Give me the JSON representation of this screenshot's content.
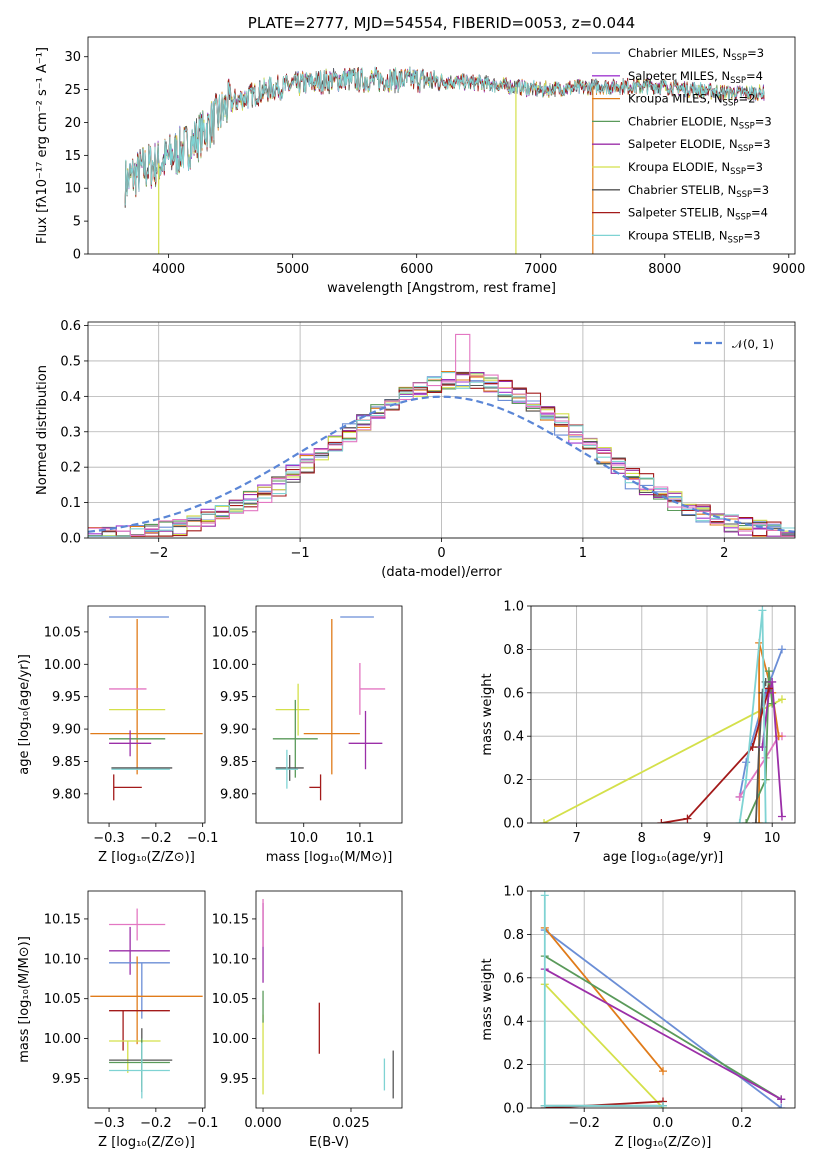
{
  "chart_data": [
    {
      "type": "line",
      "title": "PLATE=2777, MJD=54554, FIBERID=0053, z=0.044",
      "xlabel": "wavelength [Angstrom, rest frame]",
      "ylabel": "Flux [fλ10⁻¹⁷ erg cm⁻² s⁻¹ A⁻¹]",
      "xlim": [
        3350,
        9050
      ],
      "ylim": [
        0,
        33
      ],
      "xticks": [
        4000,
        5000,
        6000,
        7000,
        8000,
        9000
      ],
      "yticks": [
        0,
        5,
        10,
        15,
        20,
        25,
        30
      ],
      "legend_position": "top-right",
      "series": [
        {
          "name": "Chabrier MILES, N_SSP=3",
          "color": "#6b8ed6"
        },
        {
          "name": "Salpeter MILES, N_SSP=4",
          "color": "#a13ad0"
        },
        {
          "name": "Kroupa MILES, N_SSP=2",
          "color": "#e07b1a"
        },
        {
          "name": "Chabrier ELODIE, N_SSP=3",
          "color": "#5a9a5a"
        },
        {
          "name": "Salpeter ELODIE, N_SSP=3",
          "color": "#9b2fa8"
        },
        {
          "name": "Kroupa ELODIE, N_SSP=3",
          "color": "#d4e04a"
        },
        {
          "name": "Chabrier STELIB, N_SSP=3",
          "color": "#555555"
        },
        {
          "name": "Salpeter STELIB, N_SSP=4",
          "color": "#a31a1a"
        },
        {
          "name": "Kroupa STELIB, N_SSP=3",
          "color": "#7fd3d3"
        }
      ],
      "continuum": {
        "x": [
          3650,
          3800,
          3950,
          4200,
          4500,
          4800,
          5100,
          5400,
          5700,
          6000,
          6500,
          7000,
          7500,
          8000,
          8500,
          8800
        ],
        "y": [
          11,
          13,
          14,
          17,
          23,
          25,
          26,
          26.5,
          26.5,
          26.5,
          26,
          25,
          25.5,
          25.5,
          24.5,
          24.5
        ]
      },
      "dropouts": [
        {
          "x": 3920,
          "color": "#d4e04a"
        },
        {
          "x": 6800,
          "color": "#d4e04a"
        },
        {
          "x": 7420,
          "color": "#e07b1a"
        }
      ]
    },
    {
      "type": "histogram",
      "xlabel": "(data-model)/error",
      "ylabel": "Normed distribution",
      "xlim": [
        -2.5,
        2.5
      ],
      "ylim": [
        0,
        0.61
      ],
      "xticks": [
        -2,
        -1,
        0,
        1,
        2
      ],
      "yticks": [
        0.0,
        0.1,
        0.2,
        0.3,
        0.4,
        0.5,
        0.6
      ],
      "grid": true,
      "legend": "𝒩(0, 1)",
      "legend_position": "top-right",
      "gaussian": {
        "mu": 0,
        "sigma": 1,
        "color": "#5b86d6"
      },
      "bin_width": 0.1,
      "bin_start": -2.5,
      "series_colors": [
        "#6b8ed6",
        "#a13ad0",
        "#e07b1a",
        "#5a9a5a",
        "#9b2fa8",
        "#d4e04a",
        "#555555",
        "#a31a1a",
        "#7fd3d3",
        "#e377c2"
      ],
      "peak_value": 0.575
    },
    {
      "type": "scatter",
      "xlabel": "Z [log₁₀(Z/Z⊙)]",
      "ylabel": "age  [log₁₀(age/yr)]",
      "xlim": [
        -0.345,
        -0.095
      ],
      "ylim": [
        9.755,
        10.09
      ],
      "xticks": [
        -0.3,
        -0.2,
        -0.1
      ],
      "yticks": [
        9.8,
        9.85,
        9.9,
        9.95,
        10.0,
        10.05
      ],
      "points": [
        {
          "x": -0.23,
          "y": 10.073,
          "xerr": [
            0.07,
            0.058
          ],
          "yerr": [
            0,
            0
          ],
          "color": "#6b8ed6"
        },
        {
          "x": -0.24,
          "y": 9.97,
          "xerr": [
            0,
            0
          ],
          "yerr": [
            0.14,
            0.1
          ],
          "color": "#e07b1a"
        },
        {
          "x": -0.26,
          "y": 9.962,
          "xerr": [
            0.04,
            0.04
          ],
          "yerr": [
            0,
            0
          ],
          "color": "#e377c2"
        },
        {
          "x": -0.245,
          "y": 9.93,
          "xerr": [
            0.055,
            0.065
          ],
          "yerr": [
            0,
            0
          ],
          "color": "#d4e04a"
        },
        {
          "x": -0.24,
          "y": 9.893,
          "xerr": [
            0.1,
            0.14
          ],
          "yerr": [
            0,
            0
          ],
          "color": "#e07b1a"
        },
        {
          "x": -0.24,
          "y": 9.885,
          "xerr": [
            0.06,
            0.06
          ],
          "yerr": [
            0,
            0
          ],
          "color": "#5a9a5a"
        },
        {
          "x": -0.255,
          "y": 9.878,
          "xerr": [
            0.045,
            0.045
          ],
          "yerr": [
            0.02,
            0.02
          ],
          "color": "#9b2fa8"
        },
        {
          "x": -0.23,
          "y": 9.84,
          "xerr": [
            0.065,
            0.065
          ],
          "yerr": [
            0,
            0
          ],
          "color": "#555555"
        },
        {
          "x": -0.23,
          "y": 9.838,
          "xerr": [
            0.065,
            0.06
          ],
          "yerr": [
            0,
            0
          ],
          "color": "#7fd3d3"
        },
        {
          "x": -0.29,
          "y": 9.81,
          "xerr": [
            0,
            0.06
          ],
          "yerr": [
            0.02,
            0.02
          ],
          "color": "#a31a1a"
        }
      ]
    },
    {
      "type": "scatter",
      "xlabel": "mass [log₁₀(M/M⊙)]",
      "ylabel": "",
      "xlim": [
        9.915,
        10.175
      ],
      "ylim": [
        9.755,
        10.09
      ],
      "xticks": [
        10.0,
        10.1
      ],
      "yticks": [
        9.8,
        9.85,
        9.9,
        9.95,
        10.0,
        10.05
      ],
      "points": [
        {
          "x": 10.095,
          "y": 10.073,
          "xerr": [
            0.03,
            0.03
          ],
          "yerr": [
            0,
            0
          ],
          "color": "#6b8ed6"
        },
        {
          "x": 10.1,
          "y": 9.962,
          "xerr": [
            0,
            0.045
          ],
          "yerr": [
            0.04,
            0.04
          ],
          "color": "#e377c2"
        },
        {
          "x": 10.05,
          "y": 9.97,
          "xerr": [
            0,
            0
          ],
          "yerr": [
            0.14,
            0.1
          ],
          "color": "#e07b1a"
        },
        {
          "x": 10.05,
          "y": 9.893,
          "xerr": [
            0.05,
            0.05
          ],
          "yerr": [
            0,
            0
          ],
          "color": "#e07b1a"
        },
        {
          "x": 9.99,
          "y": 9.93,
          "xerr": [
            0.04,
            0.02
          ],
          "yerr": [
            0.04,
            0.04
          ],
          "color": "#d4e04a"
        },
        {
          "x": 9.985,
          "y": 9.885,
          "xerr": [
            0.04,
            0.04
          ],
          "yerr": [
            0.06,
            0.06
          ],
          "color": "#5a9a5a"
        },
        {
          "x": 10.11,
          "y": 9.878,
          "xerr": [
            0.03,
            0.03
          ],
          "yerr": [
            0.04,
            0.05
          ],
          "color": "#9b2fa8"
        },
        {
          "x": 9.975,
          "y": 9.84,
          "xerr": [
            0.025,
            0.025
          ],
          "yerr": [
            0.02,
            0.02
          ],
          "color": "#555555"
        },
        {
          "x": 9.97,
          "y": 9.838,
          "xerr": [
            0.02,
            0.02
          ],
          "yerr": [
            0.03,
            0.03
          ],
          "color": "#7fd3d3"
        },
        {
          "x": 10.03,
          "y": 9.81,
          "xerr": [
            0.02,
            0
          ],
          "yerr": [
            0.02,
            0.02
          ],
          "color": "#a31a1a"
        }
      ]
    },
    {
      "type": "line",
      "xlabel": "age  [log₁₀(age/yr)]",
      "ylabel": "mass weight",
      "xlim": [
        6.3,
        10.35
      ],
      "ylim": [
        0,
        1.0
      ],
      "xticks": [
        7,
        8,
        9,
        10
      ],
      "yticks": [
        0.0,
        0.2,
        0.4,
        0.6,
        0.8,
        1.0
      ],
      "grid": true,
      "series": [
        {
          "color": "#d4e04a",
          "x": [
            6.5,
            10.15
          ],
          "y": [
            0.0,
            0.57
          ]
        },
        {
          "color": "#6b8ed6",
          "x": [
            9.5,
            9.6,
            9.9,
            10.15
          ],
          "y": [
            0.12,
            0.28,
            0.6,
            0.8
          ]
        },
        {
          "color": "#e377c2",
          "x": [
            9.5,
            9.9,
            10.1,
            10.15
          ],
          "y": [
            0.12,
            0.3,
            0.4,
            0.4
          ]
        },
        {
          "color": "#e07b1a",
          "x": [
            9.8,
            9.8,
            10.0,
            10.1
          ],
          "y": [
            0.0,
            0.83,
            0.6,
            0.4
          ]
        },
        {
          "color": "#5a9a5a",
          "x": [
            9.6,
            9.9,
            9.95,
            10.0
          ],
          "y": [
            0.0,
            0.2,
            0.7,
            0.55
          ]
        },
        {
          "color": "#555555",
          "x": [
            9.75,
            9.8,
            9.85,
            9.9
          ],
          "y": [
            0.0,
            0.35,
            0.6,
            0.65
          ]
        },
        {
          "color": "#9b2fa8",
          "x": [
            9.85,
            9.95,
            10.0,
            10.15
          ],
          "y": [
            0.35,
            0.6,
            0.65,
            0.03
          ]
        },
        {
          "color": "#a31a1a",
          "x": [
            8.3,
            8.7,
            9.7,
            9.95
          ],
          "y": [
            0.0,
            0.02,
            0.35,
            0.62
          ]
        },
        {
          "color": "#7fd3d3",
          "x": [
            9.5,
            9.6,
            9.85,
            9.9
          ],
          "y": [
            0.0,
            0.2,
            0.98,
            0.0
          ]
        }
      ]
    },
    {
      "type": "scatter",
      "xlabel": "Z [log₁₀(Z/Z⊙)]",
      "ylabel": "mass [log₁₀(M/M⊙)]",
      "xlim": [
        -0.345,
        -0.095
      ],
      "ylim": [
        9.913,
        10.185
      ],
      "xticks": [
        -0.3,
        -0.2,
        -0.1
      ],
      "yticks": [
        9.95,
        10.0,
        10.05,
        10.1,
        10.15
      ],
      "points": [
        {
          "x": -0.24,
          "y": 10.143,
          "xerr": [
            0.06,
            0.06
          ],
          "yerr": [
            0.02,
            0.02
          ],
          "color": "#e377c2"
        },
        {
          "x": -0.255,
          "y": 10.11,
          "xerr": [
            0.045,
            0.085
          ],
          "yerr": [
            0.03,
            0.03
          ],
          "color": "#9b2fa8"
        },
        {
          "x": -0.23,
          "y": 10.095,
          "xerr": [
            0.07,
            0.06
          ],
          "yerr": [
            0.07,
            0
          ],
          "color": "#6b8ed6"
        },
        {
          "x": -0.24,
          "y": 10.053,
          "xerr": [
            0.1,
            0.14
          ],
          "yerr": [
            0.06,
            0.05
          ],
          "color": "#e07b1a"
        },
        {
          "x": -0.27,
          "y": 10.035,
          "xerr": [
            0.03,
            0.1
          ],
          "yerr": [
            0.05,
            0
          ],
          "color": "#a31a1a"
        },
        {
          "x": -0.26,
          "y": 9.997,
          "xerr": [
            0.04,
            0.07
          ],
          "yerr": [
            0.04,
            0
          ],
          "color": "#d4e04a"
        },
        {
          "x": -0.23,
          "y": 9.973,
          "xerr": [
            0.07,
            0.065
          ],
          "yerr": [
            0.04,
            0.04
          ],
          "color": "#555555"
        },
        {
          "x": -0.23,
          "y": 9.97,
          "xerr": [
            0.07,
            0.06
          ],
          "yerr": [
            0.03,
            0.03
          ],
          "color": "#5a9a5a"
        },
        {
          "x": -0.23,
          "y": 9.96,
          "xerr": [
            0.07,
            0.06
          ],
          "yerr": [
            0.035,
            0.035
          ],
          "color": "#7fd3d3"
        }
      ]
    },
    {
      "type": "scatter",
      "xlabel": "E(B-V)",
      "ylabel": "",
      "xlim": [
        -0.002,
        0.0395
      ],
      "ylim": [
        9.913,
        10.185
      ],
      "xticks": [
        0.0,
        0.025
      ],
      "xtick_labels": [
        "0.000",
        "0.025"
      ],
      "yticks": [
        9.95,
        10.0,
        10.05,
        10.1,
        10.15
      ],
      "points": [
        {
          "x": 0.0,
          "y": 10.12,
          "xerr": [
            0,
            0
          ],
          "yerr": [
            0.05,
            0.05
          ],
          "color": "#9b2fa8"
        },
        {
          "x": 0.0,
          "y": 10.145,
          "xerr": [
            0,
            0
          ],
          "yerr": [
            0.03,
            0.03
          ],
          "color": "#e377c2"
        },
        {
          "x": 0.0,
          "y": 9.98,
          "xerr": [
            0,
            0
          ],
          "yerr": [
            0.05,
            0.05
          ],
          "color": "#d4e04a"
        },
        {
          "x": 0.0,
          "y": 10.04,
          "xerr": [
            0,
            0
          ],
          "yerr": [
            0.02,
            0.02
          ],
          "color": "#5a9a5a"
        },
        {
          "x": 0.016,
          "y": 10.013,
          "xerr": [
            0,
            0
          ],
          "yerr": [
            0.032,
            0.032
          ],
          "color": "#a31a1a"
        },
        {
          "x": 0.0345,
          "y": 9.955,
          "xerr": [
            0,
            0
          ],
          "yerr": [
            0.02,
            0.02
          ],
          "color": "#7fd3d3"
        },
        {
          "x": 0.037,
          "y": 9.955,
          "xerr": [
            0,
            0
          ],
          "yerr": [
            0.03,
            0.03
          ],
          "color": "#555555"
        }
      ]
    },
    {
      "type": "line",
      "xlabel": "Z [log₁₀(Z/Z⊙)]",
      "ylabel": "mass weight",
      "xlim": [
        -0.335,
        0.335
      ],
      "ylim": [
        0,
        1.0
      ],
      "xticks": [
        -0.2,
        0.0,
        0.2
      ],
      "yticks": [
        0.0,
        0.2,
        0.4,
        0.6,
        0.8,
        1.0
      ],
      "grid": true,
      "series": [
        {
          "color": "#6b8ed6",
          "x": [
            -0.3,
            0.3
          ],
          "y": [
            0.82,
            0.0
          ]
        },
        {
          "color": "#e07b1a",
          "x": [
            -0.3,
            0.0
          ],
          "y": [
            0.83,
            0.17
          ]
        },
        {
          "color": "#5a9a5a",
          "x": [
            -0.3,
            0.3
          ],
          "y": [
            0.7,
            0.04
          ]
        },
        {
          "color": "#9b2fa8",
          "x": [
            -0.3,
            0.3
          ],
          "y": [
            0.64,
            0.04
          ]
        },
        {
          "color": "#d4e04a",
          "x": [
            -0.3,
            0.0
          ],
          "y": [
            0.57,
            0.0
          ]
        },
        {
          "color": "#a31a1a",
          "x": [
            -0.3,
            0.0
          ],
          "y": [
            0.0,
            0.03
          ]
        },
        {
          "color": "#555555",
          "x": [
            -0.3,
            0.0
          ],
          "y": [
            0.01,
            0.01
          ]
        },
        {
          "color": "#7fd3d3",
          "x": [
            -0.3,
            -0.3,
            0.0
          ],
          "y": [
            0.98,
            0.01,
            0.01
          ]
        }
      ]
    }
  ]
}
